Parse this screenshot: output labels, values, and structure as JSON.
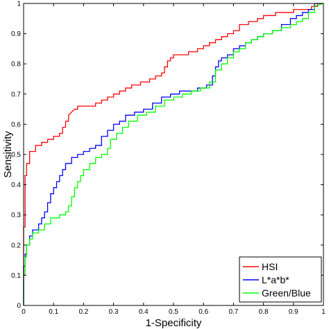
{
  "chart_data": {
    "type": "line",
    "title": "",
    "xlabel": "1-Specificity",
    "ylabel": "Sensitivity",
    "xlim": [
      0,
      1
    ],
    "ylim": [
      0,
      1
    ],
    "xticks": [
      0,
      0.1,
      0.2,
      0.3,
      0.4,
      0.5,
      0.6,
      0.7,
      0.8,
      0.9,
      1
    ],
    "yticks": [
      0,
      0.1,
      0.2,
      0.3,
      0.4,
      0.5,
      0.6,
      0.7,
      0.8,
      0.9,
      1
    ],
    "xtick_labels": [
      "0",
      "0.1",
      "0.2",
      "0.3",
      "0.4",
      "0.5",
      "0.6",
      "0.7",
      "0.8",
      "0.9",
      "1"
    ],
    "ytick_labels": [
      "0",
      "0.1",
      "0.2",
      "0.3",
      "0.4",
      "0.5",
      "0.6",
      "0.7",
      "0.8",
      "0.9",
      "1"
    ],
    "grid": false,
    "legend_position": "bottom-right",
    "series": [
      {
        "name": "HSI",
        "color": "#ff0000",
        "x": [
          0,
          0,
          0.005,
          0.005,
          0.01,
          0.01,
          0.02,
          0.02,
          0.04,
          0.04,
          0.06,
          0.06,
          0.08,
          0.08,
          0.1,
          0.1,
          0.12,
          0.12,
          0.13,
          0.13,
          0.14,
          0.14,
          0.15,
          0.15,
          0.16,
          0.17,
          0.18,
          0.18,
          0.2,
          0.2,
          0.24,
          0.24,
          0.26,
          0.26,
          0.28,
          0.28,
          0.3,
          0.3,
          0.32,
          0.32,
          0.34,
          0.34,
          0.36,
          0.36,
          0.39,
          0.39,
          0.42,
          0.42,
          0.44,
          0.44,
          0.46,
          0.46,
          0.47,
          0.47,
          0.48,
          0.48,
          0.49,
          0.49,
          0.5,
          0.5,
          0.52,
          0.52,
          0.55,
          0.55,
          0.58,
          0.58,
          0.6,
          0.6,
          0.62,
          0.62,
          0.64,
          0.64,
          0.66,
          0.66,
          0.68,
          0.68,
          0.7,
          0.7,
          0.72,
          0.72,
          0.75,
          0.75,
          0.78,
          0.78,
          0.8,
          0.8,
          0.84,
          0.84,
          0.87,
          0.87,
          0.9,
          0.9,
          0.93,
          0.93,
          0.96,
          0.96,
          0.98,
          0.98,
          1,
          1
        ],
        "y": [
          0,
          0.26,
          0.26,
          0.43,
          0.43,
          0.47,
          0.47,
          0.51,
          0.51,
          0.53,
          0.53,
          0.54,
          0.54,
          0.55,
          0.55,
          0.56,
          0.56,
          0.57,
          0.57,
          0.59,
          0.59,
          0.61,
          0.61,
          0.63,
          0.64,
          0.65,
          0.65,
          0.66,
          0.66,
          0.66,
          0.66,
          0.67,
          0.67,
          0.68,
          0.68,
          0.69,
          0.69,
          0.7,
          0.7,
          0.71,
          0.71,
          0.72,
          0.72,
          0.73,
          0.73,
          0.74,
          0.74,
          0.75,
          0.75,
          0.76,
          0.76,
          0.77,
          0.77,
          0.79,
          0.79,
          0.81,
          0.81,
          0.82,
          0.82,
          0.83,
          0.83,
          0.83,
          0.83,
          0.84,
          0.84,
          0.85,
          0.85,
          0.86,
          0.86,
          0.87,
          0.87,
          0.88,
          0.88,
          0.89,
          0.89,
          0.9,
          0.9,
          0.91,
          0.91,
          0.93,
          0.93,
          0.94,
          0.94,
          0.95,
          0.95,
          0.96,
          0.96,
          0.97,
          0.97,
          0.97,
          0.97,
          0.98,
          0.98,
          0.98,
          0.98,
          0.99,
          0.99,
          1,
          1,
          1
        ]
      },
      {
        "name": "L*a*b*",
        "color": "#0000ff",
        "x": [
          0,
          0,
          0.005,
          0.005,
          0.01,
          0.01,
          0.02,
          0.02,
          0.03,
          0.03,
          0.05,
          0.05,
          0.06,
          0.06,
          0.07,
          0.07,
          0.08,
          0.08,
          0.09,
          0.09,
          0.1,
          0.1,
          0.11,
          0.11,
          0.12,
          0.12,
          0.13,
          0.13,
          0.14,
          0.14,
          0.16,
          0.16,
          0.18,
          0.18,
          0.2,
          0.2,
          0.22,
          0.22,
          0.24,
          0.24,
          0.26,
          0.26,
          0.28,
          0.28,
          0.3,
          0.3,
          0.32,
          0.32,
          0.34,
          0.34,
          0.37,
          0.37,
          0.4,
          0.4,
          0.43,
          0.43,
          0.46,
          0.46,
          0.49,
          0.49,
          0.52,
          0.52,
          0.55,
          0.55,
          0.58,
          0.58,
          0.61,
          0.61,
          0.63,
          0.63,
          0.64,
          0.64,
          0.65,
          0.65,
          0.66,
          0.66,
          0.68,
          0.68,
          0.7,
          0.7,
          0.72,
          0.72,
          0.74,
          0.74,
          0.76,
          0.76,
          0.78,
          0.78,
          0.8,
          0.8,
          0.83,
          0.83,
          0.86,
          0.86,
          0.89,
          0.89,
          0.91,
          0.91,
          0.93,
          0.93,
          0.95,
          0.95,
          0.97,
          0.97,
          1
        ],
        "y": [
          0,
          0.13,
          0.13,
          0.17,
          0.17,
          0.2,
          0.2,
          0.23,
          0.23,
          0.25,
          0.25,
          0.27,
          0.27,
          0.29,
          0.29,
          0.31,
          0.31,
          0.34,
          0.34,
          0.37,
          0.37,
          0.39,
          0.39,
          0.41,
          0.41,
          0.43,
          0.43,
          0.45,
          0.45,
          0.47,
          0.47,
          0.49,
          0.49,
          0.5,
          0.5,
          0.51,
          0.51,
          0.52,
          0.52,
          0.53,
          0.53,
          0.56,
          0.56,
          0.58,
          0.58,
          0.6,
          0.6,
          0.61,
          0.61,
          0.63,
          0.63,
          0.64,
          0.64,
          0.65,
          0.65,
          0.67,
          0.67,
          0.69,
          0.69,
          0.7,
          0.7,
          0.71,
          0.71,
          0.71,
          0.71,
          0.72,
          0.72,
          0.73,
          0.73,
          0.76,
          0.76,
          0.79,
          0.79,
          0.81,
          0.81,
          0.82,
          0.82,
          0.83,
          0.83,
          0.85,
          0.85,
          0.86,
          0.86,
          0.87,
          0.87,
          0.88,
          0.88,
          0.89,
          0.89,
          0.9,
          0.9,
          0.91,
          0.91,
          0.93,
          0.93,
          0.95,
          0.95,
          0.96,
          0.96,
          0.97,
          0.97,
          0.98,
          0.98,
          1,
          1
        ]
      },
      {
        "name": "Green/Blue",
        "color": "#00ff00",
        "x": [
          0,
          0,
          0.005,
          0.005,
          0.01,
          0.01,
          0.02,
          0.02,
          0.03,
          0.03,
          0.05,
          0.05,
          0.07,
          0.07,
          0.09,
          0.09,
          0.12,
          0.12,
          0.14,
          0.14,
          0.15,
          0.15,
          0.16,
          0.16,
          0.17,
          0.17,
          0.18,
          0.18,
          0.19,
          0.19,
          0.2,
          0.2,
          0.22,
          0.22,
          0.24,
          0.24,
          0.26,
          0.26,
          0.28,
          0.28,
          0.29,
          0.29,
          0.31,
          0.31,
          0.33,
          0.33,
          0.35,
          0.35,
          0.38,
          0.38,
          0.41,
          0.41,
          0.44,
          0.44,
          0.47,
          0.47,
          0.5,
          0.5,
          0.53,
          0.53,
          0.56,
          0.56,
          0.59,
          0.59,
          0.62,
          0.62,
          0.64,
          0.64,
          0.66,
          0.66,
          0.68,
          0.68,
          0.7,
          0.7,
          0.72,
          0.72,
          0.74,
          0.74,
          0.76,
          0.76,
          0.78,
          0.78,
          0.8,
          0.8,
          0.83,
          0.83,
          0.86,
          0.86,
          0.89,
          0.89,
          0.91,
          0.91,
          0.93,
          0.93,
          0.95,
          0.95,
          0.97,
          0.97,
          1
        ],
        "y": [
          0,
          0.1,
          0.1,
          0.16,
          0.16,
          0.2,
          0.2,
          0.22,
          0.22,
          0.24,
          0.24,
          0.25,
          0.25,
          0.27,
          0.27,
          0.29,
          0.29,
          0.3,
          0.3,
          0.31,
          0.31,
          0.33,
          0.33,
          0.36,
          0.36,
          0.39,
          0.39,
          0.41,
          0.41,
          0.43,
          0.43,
          0.45,
          0.45,
          0.47,
          0.47,
          0.49,
          0.49,
          0.5,
          0.5,
          0.52,
          0.52,
          0.55,
          0.55,
          0.57,
          0.57,
          0.59,
          0.59,
          0.61,
          0.61,
          0.63,
          0.63,
          0.64,
          0.64,
          0.66,
          0.66,
          0.68,
          0.68,
          0.69,
          0.69,
          0.7,
          0.7,
          0.71,
          0.71,
          0.72,
          0.72,
          0.74,
          0.74,
          0.78,
          0.78,
          0.8,
          0.8,
          0.82,
          0.82,
          0.84,
          0.84,
          0.85,
          0.85,
          0.87,
          0.87,
          0.88,
          0.88,
          0.89,
          0.89,
          0.9,
          0.9,
          0.91,
          0.91,
          0.92,
          0.92,
          0.93,
          0.93,
          0.94,
          0.94,
          0.95,
          0.95,
          0.97,
          0.97,
          0.99,
          1
        ]
      }
    ]
  }
}
